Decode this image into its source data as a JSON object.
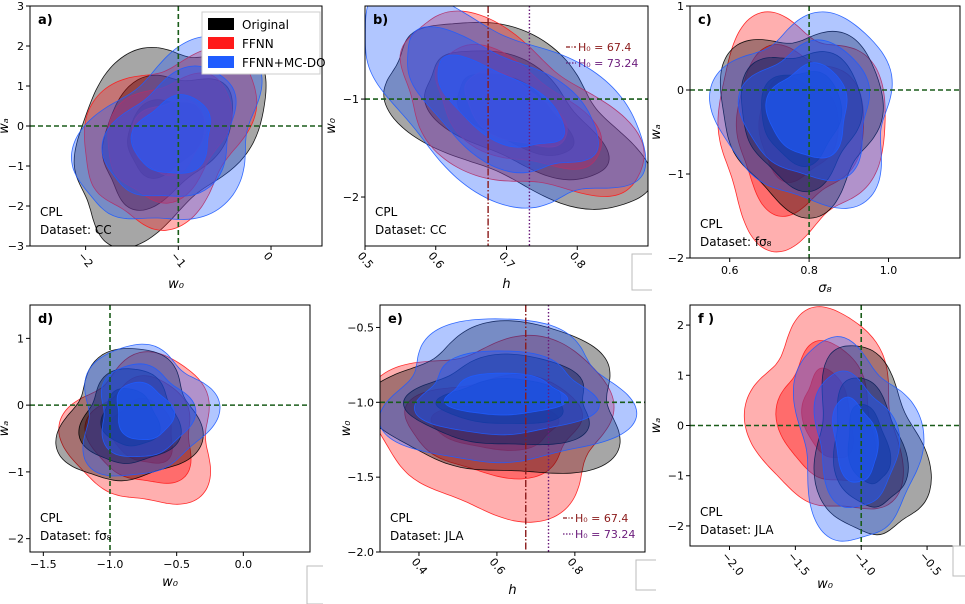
{
  "colors": {
    "original": "#000000",
    "ffnn": "#ff1a1a",
    "ffnn_mcdo": "#1f5cff",
    "fiducial": "#1a5c1a",
    "h0_planck": "#8b1a1a",
    "h0_riess": "#6a1a7a"
  },
  "legend": {
    "items": [
      {
        "label": "Original",
        "color": "#000000"
      },
      {
        "label": "FFNN",
        "color": "#ff1a1a"
      },
      {
        "label": "FFNN+MC-DO",
        "color": "#1f5cff"
      }
    ]
  },
  "h0_legend": {
    "planck": "H₀ = 67.4",
    "riess": "H₀ = 73.24"
  },
  "chart_data": [
    {
      "type": "contour",
      "panel": "a)",
      "xlabel": "w₀",
      "ylabel": "wₐ",
      "xlim": [
        -2.6,
        0.55
      ],
      "ylim": [
        -3,
        3
      ],
      "xticks": [
        -2,
        -1,
        0
      ],
      "yticks": [
        -3,
        -2,
        -1,
        0,
        1,
        2,
        3
      ],
      "tick_rotation": -50,
      "fiducial": {
        "x": -1,
        "y": 0
      },
      "h0_lines": [],
      "notes": [
        "CPL",
        "Dataset: CC"
      ],
      "note_corner": "bottom-left",
      "show_main_legend": true,
      "show_h0_legend": false,
      "contours": [
        {
          "series": "Original",
          "center": [
            -1.15,
            -0.25
          ],
          "outer": [
            1.2,
            1.9
          ],
          "inner": [
            0.8,
            1.35
          ],
          "core": [
            0.45,
            0.85
          ],
          "tilt": 45
        },
        {
          "series": "FFNN",
          "center": [
            -1.1,
            -0.25
          ],
          "outer": [
            1.05,
            1.75
          ],
          "inner": [
            0.75,
            1.3
          ],
          "core": [
            0.42,
            0.85
          ],
          "tilt": 45
        },
        {
          "series": "FFNN+MC-DO",
          "center": [
            -1.05,
            -0.25
          ],
          "outer": [
            1.15,
            1.8
          ],
          "inner": [
            0.8,
            1.35
          ],
          "core": [
            0.45,
            0.9
          ],
          "tilt": 45
        }
      ]
    },
    {
      "type": "contour",
      "panel": "b)",
      "xlabel": "h",
      "ylabel": "w₀",
      "xlim": [
        0.5,
        0.9
      ],
      "ylim": [
        -2.5,
        -0.05
      ],
      "xticks": [
        0.5,
        0.6,
        0.7,
        0.8
      ],
      "yticks": [
        -2,
        -1
      ],
      "tick_rotation": -50,
      "fiducial": {
        "x": null,
        "y": -1
      },
      "h0_lines": [
        0.674,
        0.7324
      ],
      "notes": [
        "CPL",
        "Dataset: CC"
      ],
      "note_corner": "bottom-left",
      "show_main_legend": false,
      "show_h0_legend": true,
      "h0_legend_corner": "top-right",
      "contours": [
        {
          "series": "Original",
          "center": [
            0.71,
            -1.15
          ],
          "outer": [
            0.2,
            0.7
          ],
          "inner": [
            0.14,
            0.48
          ],
          "core": [
            0.09,
            0.3
          ],
          "tilt": -30
        },
        {
          "series": "FFNN",
          "center": [
            0.71,
            -1.12
          ],
          "outer": [
            0.19,
            0.68
          ],
          "inner": [
            0.13,
            0.46
          ],
          "core": [
            0.08,
            0.29
          ],
          "tilt": -30
        },
        {
          "series": "FFNN+MC-DO",
          "center": [
            0.69,
            -1.05
          ],
          "outer": [
            0.22,
            0.78
          ],
          "inner": [
            0.15,
            0.52
          ],
          "core": [
            0.1,
            0.32
          ],
          "tilt": -30
        }
      ]
    },
    {
      "type": "contour",
      "panel": "c)",
      "xlabel": "σ₈",
      "ylabel": "wₐ",
      "xlim": [
        0.5,
        1.18
      ],
      "ylim": [
        -2,
        1
      ],
      "xticks": [
        0.6,
        0.8,
        1.0
      ],
      "yticks": [
        -2,
        -1,
        0,
        1
      ],
      "tick_rotation": 0,
      "fiducial": {
        "x": 0.8,
        "y": 0
      },
      "h0_lines": [],
      "notes": [
        "CPL",
        "Dataset: fσ₈"
      ],
      "note_corner": "bottom-left",
      "show_main_legend": false,
      "show_h0_legend": false,
      "contours": [
        {
          "series": "FFNN",
          "center": [
            0.77,
            -0.45
          ],
          "outer": [
            0.21,
            1.3
          ],
          "inner": [
            0.16,
            0.95
          ],
          "core": [
            0.1,
            0.6
          ],
          "tilt": 0
        },
        {
          "series": "Original",
          "center": [
            0.78,
            -0.3
          ],
          "outer": [
            0.2,
            1.05
          ],
          "inner": [
            0.15,
            0.8
          ],
          "core": [
            0.1,
            0.55
          ],
          "tilt": 0
        },
        {
          "series": "FFNN+MC-DO",
          "center": [
            0.8,
            -0.25
          ],
          "outer": [
            0.22,
            1.1
          ],
          "inner": [
            0.16,
            0.8
          ],
          "core": [
            0.1,
            0.55
          ],
          "tilt": 0
        }
      ]
    },
    {
      "type": "contour",
      "panel": "d)",
      "xlabel": "w₀",
      "ylabel": "wₐ",
      "xlim": [
        -1.6,
        0.5
      ],
      "ylim": [
        -2.2,
        1.5
      ],
      "xticks": [
        -1.5,
        -1.0,
        -0.5,
        0.0
      ],
      "yticks": [
        -2,
        -1,
        0,
        1
      ],
      "tick_rotation": 0,
      "fiducial": {
        "x": -1,
        "y": 0
      },
      "h0_lines": [],
      "notes": [
        "CPL",
        "Dataset: fσ₈"
      ],
      "note_corner": "bottom-left",
      "show_main_legend": false,
      "show_h0_legend": false,
      "contours": [
        {
          "series": "FFNN",
          "center": [
            -0.75,
            -0.4
          ],
          "outer": [
            0.55,
            1.1
          ],
          "inner": [
            0.38,
            0.8
          ],
          "core": [
            0.22,
            0.5
          ],
          "tilt": 40
        },
        {
          "series": "Original",
          "center": [
            -0.85,
            -0.2
          ],
          "outer": [
            0.52,
            0.95
          ],
          "inner": [
            0.36,
            0.7
          ],
          "core": [
            0.2,
            0.45
          ],
          "tilt": 40
        },
        {
          "series": "FFNN+MC-DO",
          "center": [
            -0.75,
            -0.1
          ],
          "outer": [
            0.5,
            0.95
          ],
          "inner": [
            0.34,
            0.7
          ],
          "core": [
            0.2,
            0.45
          ],
          "tilt": 40
        }
      ]
    },
    {
      "type": "contour",
      "panel": "e)",
      "xlabel": "h",
      "ylabel": "w₀",
      "xlim": [
        0.3,
        0.98
      ],
      "ylim": [
        -2,
        -0.35
      ],
      "xticks": [
        0.4,
        0.6,
        0.8
      ],
      "yticks": [
        -2.0,
        -1.5,
        -1.0,
        -0.5
      ],
      "tick_rotation": -50,
      "fiducial": {
        "x": null,
        "y": -1
      },
      "h0_lines": [
        0.674,
        0.7324
      ],
      "notes": [
        "CPL",
        "Dataset: JLA"
      ],
      "note_corner": "bottom-left",
      "show_main_legend": false,
      "show_h0_legend": true,
      "h0_legend_corner": "bottom-right",
      "contours": [
        {
          "series": "FFNN",
          "center": [
            0.6,
            -1.15
          ],
          "outer": [
            0.3,
            0.58
          ],
          "inner": [
            0.22,
            0.33
          ],
          "core": [
            0.16,
            0.16
          ],
          "tilt": 0
        },
        {
          "series": "Original",
          "center": [
            0.62,
            -1.0
          ],
          "outer": [
            0.31,
            0.5
          ],
          "inner": [
            0.23,
            0.3
          ],
          "core": [
            0.16,
            0.15
          ],
          "tilt": 0
        },
        {
          "series": "FFNN+MC-DO",
          "center": [
            0.62,
            -0.95
          ],
          "outer": [
            0.3,
            0.48
          ],
          "inner": [
            0.22,
            0.28
          ],
          "core": [
            0.15,
            0.14
          ],
          "tilt": 0
        }
      ]
    },
    {
      "type": "contour",
      "panel": "f )",
      "xlabel": "w₀",
      "ylabel": "wₐ",
      "xlim": [
        -2.3,
        -0.25
      ],
      "ylim": [
        -2.4,
        2.4
      ],
      "xticks": [
        -2.0,
        -1.5,
        -1.0,
        -0.5
      ],
      "yticks": [
        -2,
        -1,
        0,
        1,
        2
      ],
      "tick_rotation": -50,
      "fiducial": {
        "x": -1,
        "y": 0
      },
      "h0_lines": [],
      "notes": [
        "CPL",
        "Dataset: JLA"
      ],
      "note_corner": "bottom-left",
      "show_main_legend": false,
      "show_h0_legend": false,
      "contours": [
        {
          "series": "FFNN",
          "center": [
            -1.25,
            0.2
          ],
          "outer": [
            0.55,
            2.0
          ],
          "inner": [
            0.35,
            1.4
          ],
          "core": [
            0.18,
            0.9
          ],
          "tilt": 10
        },
        {
          "series": "Original",
          "center": [
            -0.95,
            -0.4
          ],
          "outer": [
            0.4,
            1.9
          ],
          "inner": [
            0.26,
            1.3
          ],
          "core": [
            0.15,
            0.8
          ],
          "tilt": 10
        },
        {
          "series": "FFNN+MC-DO",
          "center": [
            -1.05,
            -0.3
          ],
          "outer": [
            0.45,
            2.0
          ],
          "inner": [
            0.3,
            1.35
          ],
          "core": [
            0.16,
            0.85
          ],
          "tilt": 10
        }
      ]
    }
  ]
}
